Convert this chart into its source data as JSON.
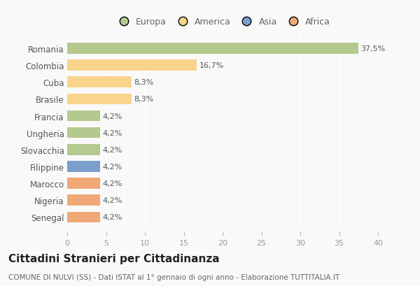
{
  "categories": [
    "Romania",
    "Colombia",
    "Cuba",
    "Brasile",
    "Francia",
    "Ungheria",
    "Slovacchia",
    "Filippine",
    "Marocco",
    "Nigeria",
    "Senegal"
  ],
  "values": [
    37.5,
    16.7,
    8.3,
    8.3,
    4.2,
    4.2,
    4.2,
    4.2,
    4.2,
    4.2,
    4.2
  ],
  "labels": [
    "37,5%",
    "16,7%",
    "8,3%",
    "8,3%",
    "4,2%",
    "4,2%",
    "4,2%",
    "4,2%",
    "4,2%",
    "4,2%",
    "4,2%"
  ],
  "colors": [
    "#b5c98e",
    "#f9d48b",
    "#f9d48b",
    "#f9d48b",
    "#b5c98e",
    "#b5c98e",
    "#b5c98e",
    "#7b9fcc",
    "#f0a878",
    "#f0a878",
    "#f0a878"
  ],
  "legend_labels": [
    "Europa",
    "America",
    "Asia",
    "Africa"
  ],
  "legend_colors": [
    "#b5c98e",
    "#f9d48b",
    "#7b9fcc",
    "#f0a878"
  ],
  "xlim": [
    0,
    40
  ],
  "xticks": [
    0,
    5,
    10,
    15,
    20,
    25,
    30,
    35,
    40
  ],
  "title": "Cittadini Stranieri per Cittadinanza",
  "subtitle": "COMUNE DI NULVI (SS) - Dati ISTAT al 1° gennaio di ogni anno - Elaborazione TUTTITALIA.IT",
  "background_color": "#f9f9f9",
  "grid_color": "#ffffff",
  "bar_height": 0.65,
  "title_fontsize": 11,
  "subtitle_fontsize": 7.5,
  "label_fontsize": 8,
  "tick_fontsize": 8,
  "legend_fontsize": 9,
  "ytick_fontsize": 8.5
}
